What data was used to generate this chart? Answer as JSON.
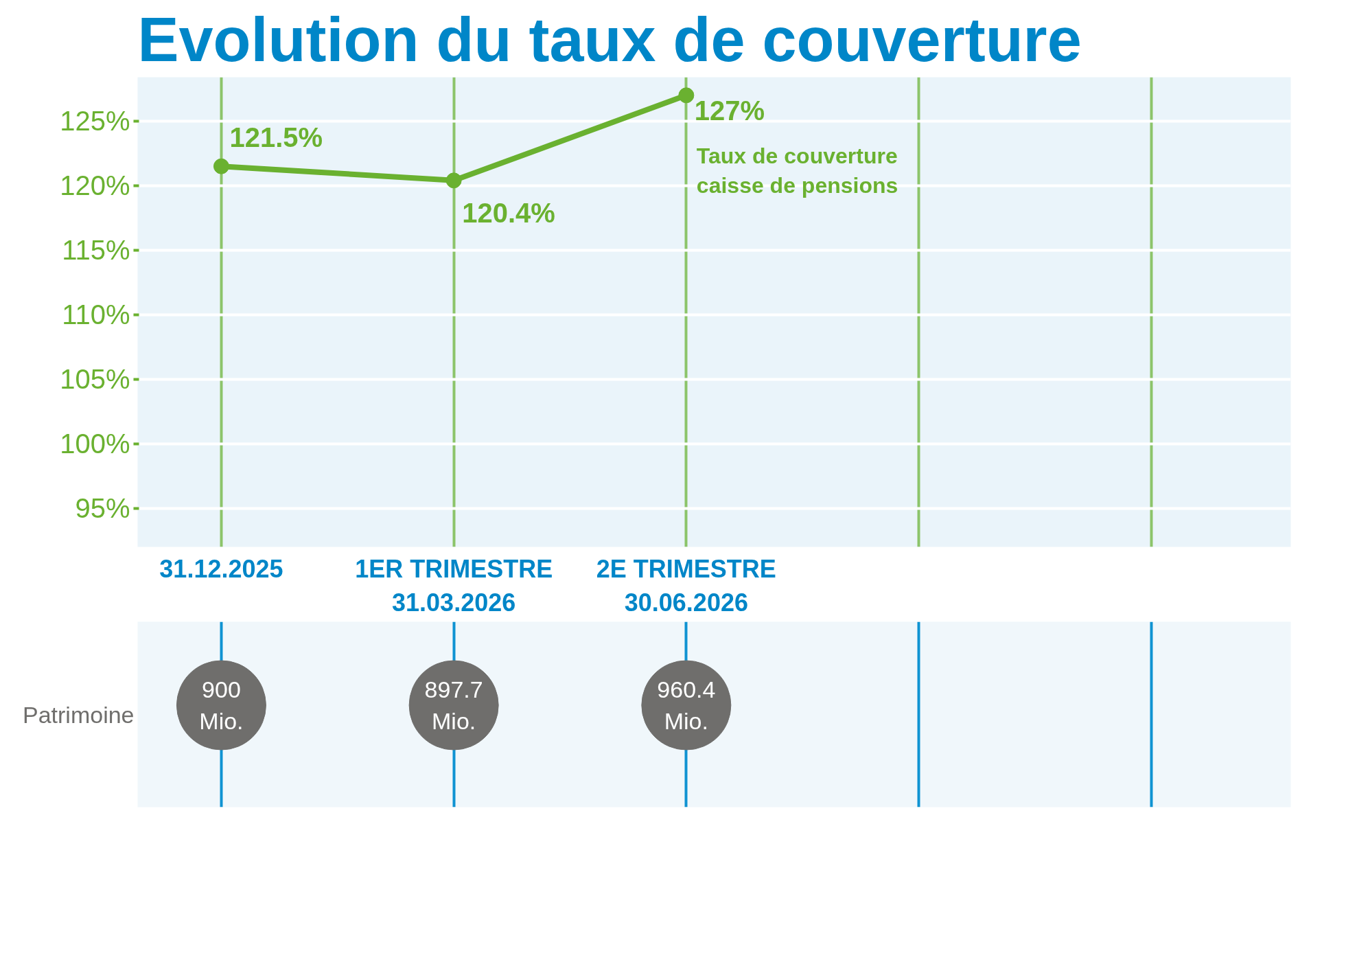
{
  "chart_data": {
    "type": "line",
    "title": "Evolution du taux de couverture",
    "categories": [
      "31.12.2025",
      "1ER TRIMESTRE\n31.03.2026",
      "2E TRIMESTRE\n30.06.2026",
      null,
      null
    ],
    "series": [
      {
        "name": "Taux de couverture\ncaisse de pensions",
        "color": "#6ab130",
        "values": [
          121.5,
          120.4,
          127,
          null,
          null
        ],
        "value_labels": [
          "121.5%",
          "120.4%",
          "127%",
          null,
          null
        ]
      }
    ],
    "ylim": [
      92,
      128.4
    ],
    "yticks": [
      {
        "value": 95,
        "label": "95%"
      },
      {
        "value": 100,
        "label": "100%"
      },
      {
        "value": 105,
        "label": "105%"
      },
      {
        "value": 110,
        "label": "110%"
      },
      {
        "value": 115,
        "label": "115%"
      },
      {
        "value": 120,
        "label": "120%"
      },
      {
        "value": 125,
        "label": "125%"
      }
    ],
    "annotations": [
      "Patrimoine",
      "900\nMio.",
      "897.7\nMio.",
      "960.4\nMio."
    ],
    "grid": true,
    "marker": "circle",
    "line_style": "solid"
  }
}
